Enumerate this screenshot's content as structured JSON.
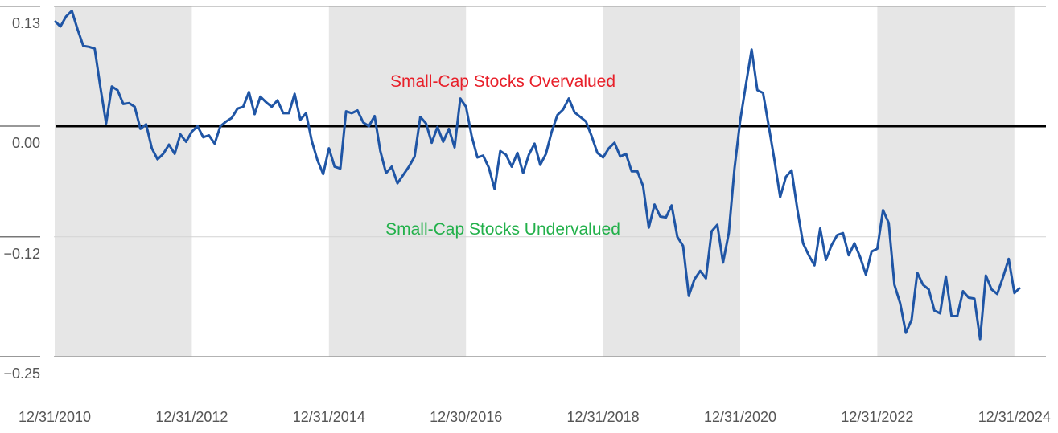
{
  "chart_data": {
    "type": "line",
    "title": "",
    "xlabel": "",
    "ylabel": "",
    "ylim": [
      -0.25,
      0.13
    ],
    "y_ticks": [
      "0.13",
      "0.00",
      "−0.12",
      "−0.25"
    ],
    "y_tick_values": [
      0.13,
      0.0,
      -0.12,
      -0.25
    ],
    "x_ticks": [
      "12/31/2010",
      "12/31/2012",
      "12/31/2014",
      "12/30/2016",
      "12/31/2018",
      "12/31/2020",
      "12/31/2022",
      "12/31/2024"
    ],
    "x_tick_dates": [
      "2010-12",
      "2012-12",
      "2014-12",
      "2016-12",
      "2018-12",
      "2020-12",
      "2022-12",
      "2024-12"
    ],
    "shaded_periods": [
      [
        "2010-12",
        "2012-12"
      ],
      [
        "2014-12",
        "2016-12"
      ],
      [
        "2018-12",
        "2020-12"
      ],
      [
        "2022-12",
        "2024-12"
      ]
    ],
    "reference_line": 0.0,
    "grid": true,
    "annotations": {
      "overvalued": "Small-Cap Stocks Overvalued",
      "undervalued": "Small-Cap Stocks Undervalued"
    },
    "colors": {
      "line": "#1f55a5",
      "shade": "#e6e6e6",
      "overvalued": "#e8202a",
      "undervalued": "#22b04a",
      "reference": "#000000"
    },
    "series": [
      {
        "points": [
          [
            "2010-12",
            0.114
          ],
          [
            "2011-01",
            0.108
          ],
          [
            "2011-02",
            0.119
          ],
          [
            "2011-03",
            0.125
          ],
          [
            "2011-04",
            0.105
          ],
          [
            "2011-05",
            0.087
          ],
          [
            "2011-06",
            0.086
          ],
          [
            "2011-07",
            0.084
          ],
          [
            "2011-08",
            0.042
          ],
          [
            "2011-09",
            0.003
          ],
          [
            "2011-10",
            0.043
          ],
          [
            "2011-11",
            0.039
          ],
          [
            "2011-12",
            0.024
          ],
          [
            "2012-01",
            0.025
          ],
          [
            "2012-02",
            0.021
          ],
          [
            "2012-03",
            -0.003
          ],
          [
            "2012-04",
            0.002
          ],
          [
            "2012-05",
            -0.024
          ],
          [
            "2012-06",
            -0.036
          ],
          [
            "2012-07",
            -0.03
          ],
          [
            "2012-08",
            -0.02
          ],
          [
            "2012-09",
            -0.03
          ],
          [
            "2012-10",
            -0.009
          ],
          [
            "2012-11",
            -0.017
          ],
          [
            "2012-12",
            -0.006
          ],
          [
            "2013-01",
            0.0
          ],
          [
            "2013-02",
            -0.012
          ],
          [
            "2013-03",
            -0.01
          ],
          [
            "2013-04",
            -0.019
          ],
          [
            "2013-05",
            0.0
          ],
          [
            "2013-06",
            0.005
          ],
          [
            "2013-07",
            0.009
          ],
          [
            "2013-08",
            0.019
          ],
          [
            "2013-09",
            0.021
          ],
          [
            "2013-10",
            0.037
          ],
          [
            "2013-11",
            0.013
          ],
          [
            "2013-12",
            0.032
          ],
          [
            "2014-01",
            0.026
          ],
          [
            "2014-02",
            0.021
          ],
          [
            "2014-03",
            0.028
          ],
          [
            "2014-04",
            0.014
          ],
          [
            "2014-05",
            0.014
          ],
          [
            "2014-06",
            0.035
          ],
          [
            "2014-07",
            0.007
          ],
          [
            "2014-08",
            0.014
          ],
          [
            "2014-09",
            -0.016
          ],
          [
            "2014-10",
            -0.037
          ],
          [
            "2014-11",
            -0.052
          ],
          [
            "2014-12",
            -0.024
          ],
          [
            "2015-01",
            -0.044
          ],
          [
            "2015-02",
            -0.046
          ],
          [
            "2015-03",
            0.016
          ],
          [
            "2015-04",
            0.014
          ],
          [
            "2015-05",
            0.017
          ],
          [
            "2015-06",
            0.004
          ],
          [
            "2015-07",
            0.0
          ],
          [
            "2015-08",
            0.011
          ],
          [
            "2015-09",
            -0.027
          ],
          [
            "2015-10",
            -0.051
          ],
          [
            "2015-11",
            -0.044
          ],
          [
            "2015-12",
            -0.062
          ],
          [
            "2016-01",
            -0.053
          ],
          [
            "2016-02",
            -0.044
          ],
          [
            "2016-03",
            -0.033
          ],
          [
            "2016-04",
            0.01
          ],
          [
            "2016-05",
            0.003
          ],
          [
            "2016-06",
            -0.018
          ],
          [
            "2016-07",
            -0.001
          ],
          [
            "2016-08",
            -0.017
          ],
          [
            "2016-09",
            -0.003
          ],
          [
            "2016-10",
            -0.023
          ],
          [
            "2016-11",
            0.03
          ],
          [
            "2016-12",
            0.021
          ],
          [
            "2017-01",
            -0.011
          ],
          [
            "2017-02",
            -0.034
          ],
          [
            "2017-03",
            -0.032
          ],
          [
            "2017-04",
            -0.045
          ],
          [
            "2017-05",
            -0.068
          ],
          [
            "2017-06",
            -0.027
          ],
          [
            "2017-07",
            -0.031
          ],
          [
            "2017-08",
            -0.044
          ],
          [
            "2017-09",
            -0.029
          ],
          [
            "2017-10",
            -0.051
          ],
          [
            "2017-11",
            -0.031
          ],
          [
            "2017-12",
            -0.019
          ],
          [
            "2018-01",
            -0.042
          ],
          [
            "2018-02",
            -0.03
          ],
          [
            "2018-03",
            -0.006
          ],
          [
            "2018-04",
            0.012
          ],
          [
            "2018-05",
            0.018
          ],
          [
            "2018-06",
            0.03
          ],
          [
            "2018-07",
            0.015
          ],
          [
            "2018-08",
            0.01
          ],
          [
            "2018-09",
            0.005
          ],
          [
            "2018-10",
            -0.011
          ],
          [
            "2018-11",
            -0.029
          ],
          [
            "2018-12",
            -0.034
          ],
          [
            "2019-01",
            -0.024
          ],
          [
            "2019-02",
            -0.018
          ],
          [
            "2019-03",
            -0.033
          ],
          [
            "2019-04",
            -0.03
          ],
          [
            "2019-05",
            -0.049
          ],
          [
            "2019-06",
            -0.049
          ],
          [
            "2019-07",
            -0.065
          ],
          [
            "2019-08",
            -0.11
          ],
          [
            "2019-09",
            -0.085
          ],
          [
            "2019-10",
            -0.098
          ],
          [
            "2019-11",
            -0.099
          ],
          [
            "2019-12",
            -0.086
          ],
          [
            "2020-01",
            -0.12
          ],
          [
            "2020-02",
            -0.13
          ],
          [
            "2020-03",
            -0.184
          ],
          [
            "2020-04",
            -0.166
          ],
          [
            "2020-05",
            -0.157
          ],
          [
            "2020-06",
            -0.165
          ],
          [
            "2020-07",
            -0.114
          ],
          [
            "2020-08",
            -0.107
          ],
          [
            "2020-09",
            -0.148
          ],
          [
            "2020-10",
            -0.116
          ],
          [
            "2020-11",
            -0.046
          ],
          [
            "2020-12",
            0.006
          ],
          [
            "2021-01",
            0.045
          ],
          [
            "2021-02",
            0.083
          ],
          [
            "2021-03",
            0.039
          ],
          [
            "2021-04",
            0.036
          ],
          [
            "2021-05",
            0.0
          ],
          [
            "2021-06",
            -0.037
          ],
          [
            "2021-07",
            -0.077
          ],
          [
            "2021-08",
            -0.055
          ],
          [
            "2021-09",
            -0.048
          ],
          [
            "2021-10",
            -0.09
          ],
          [
            "2021-11",
            -0.127
          ],
          [
            "2021-12",
            -0.14
          ],
          [
            "2022-01",
            -0.151
          ],
          [
            "2022-02",
            -0.111
          ],
          [
            "2022-03",
            -0.145
          ],
          [
            "2022-04",
            -0.129
          ],
          [
            "2022-05",
            -0.118
          ],
          [
            "2022-06",
            -0.116
          ],
          [
            "2022-07",
            -0.14
          ],
          [
            "2022-08",
            -0.127
          ],
          [
            "2022-09",
            -0.142
          ],
          [
            "2022-10",
            -0.161
          ],
          [
            "2022-11",
            -0.136
          ],
          [
            "2022-12",
            -0.133
          ],
          [
            "2023-01",
            -0.091
          ],
          [
            "2023-02",
            -0.105
          ],
          [
            "2023-03",
            -0.172
          ],
          [
            "2023-04",
            -0.192
          ],
          [
            "2023-05",
            -0.224
          ],
          [
            "2023-06",
            -0.21
          ],
          [
            "2023-07",
            -0.159
          ],
          [
            "2023-08",
            -0.172
          ],
          [
            "2023-09",
            -0.177
          ],
          [
            "2023-10",
            -0.2
          ],
          [
            "2023-11",
            -0.203
          ],
          [
            "2023-12",
            -0.163
          ],
          [
            "2024-01",
            -0.206
          ],
          [
            "2024-02",
            -0.206
          ],
          [
            "2024-03",
            -0.179
          ],
          [
            "2024-04",
            -0.186
          ],
          [
            "2024-05",
            -0.187
          ],
          [
            "2024-06",
            -0.231
          ],
          [
            "2024-07",
            -0.162
          ],
          [
            "2024-08",
            -0.177
          ],
          [
            "2024-09",
            -0.182
          ],
          [
            "2024-10",
            -0.164
          ],
          [
            "2024-11",
            -0.144
          ],
          [
            "2024-12",
            -0.181
          ],
          [
            "2025-01",
            -0.175
          ]
        ]
      }
    ]
  }
}
